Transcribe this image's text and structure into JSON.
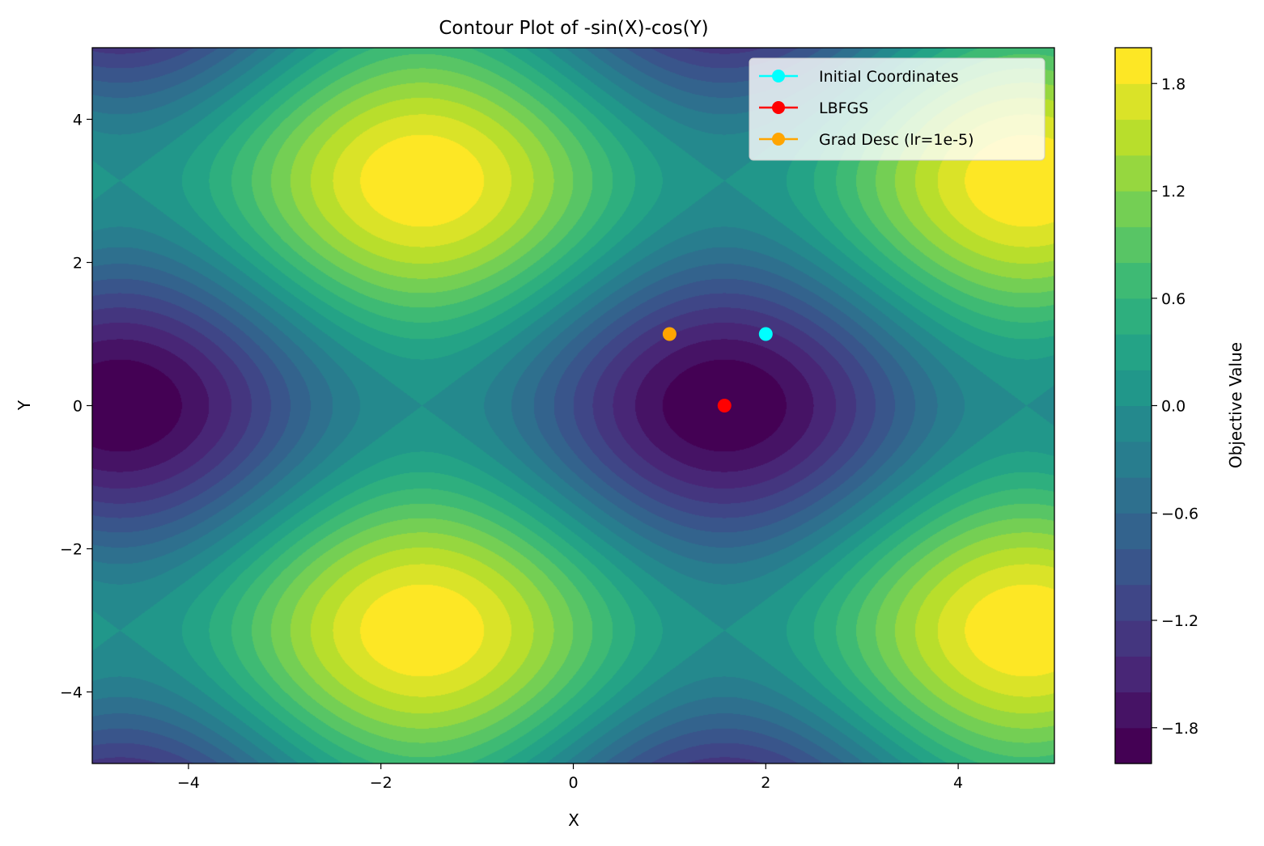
{
  "chart_data": {
    "type": "contourf",
    "title": "Contour Plot of -sin(X)-cos(Y)",
    "xlabel": "X",
    "ylabel": "Y",
    "xlim": [
      -5,
      5
    ],
    "ylim": [
      -5,
      5
    ],
    "x_ticks": [
      -4,
      -2,
      0,
      2,
      4
    ],
    "y_ticks": [
      -4,
      -2,
      0,
      2,
      4
    ],
    "x_tick_labels": [
      "−4",
      "−2",
      "0",
      "2",
      "4"
    ],
    "y_tick_labels": [
      "−4",
      "−2",
      "0",
      "2",
      "4"
    ],
    "function": "-sin(X)-cos(Y)",
    "levels": [
      -2.0,
      -1.8,
      -1.6,
      -1.4,
      -1.2,
      -1.0,
      -0.8,
      -0.6,
      -0.4,
      -0.2,
      0.0,
      0.2,
      0.4,
      0.6,
      0.8,
      1.0,
      1.2,
      1.4,
      1.6,
      1.8,
      2.0
    ],
    "colormap": "viridis",
    "colorbar": {
      "label": "Objective Value",
      "ticks": [
        1.8,
        1.2,
        0.6,
        0.0,
        -0.6,
        -1.2,
        -1.8
      ],
      "tick_labels": [
        "1.8",
        "1.2",
        "0.6",
        "0.0",
        "−0.6",
        "−1.2",
        "−1.8"
      ]
    },
    "legend_position": "top-right",
    "series": [
      {
        "name": "Initial Coordinates",
        "color": "#00ffff",
        "x": [
          2.0
        ],
        "y": [
          1.0
        ]
      },
      {
        "name": "LBFGS",
        "color": "#ff0000",
        "x": [
          1.5708
        ],
        "y": [
          0.0
        ]
      },
      {
        "name": "Grad Desc (lr=1e-5)",
        "color": "#ffa500",
        "x": [
          1.0
        ],
        "y": [
          1.0
        ]
      }
    ]
  }
}
